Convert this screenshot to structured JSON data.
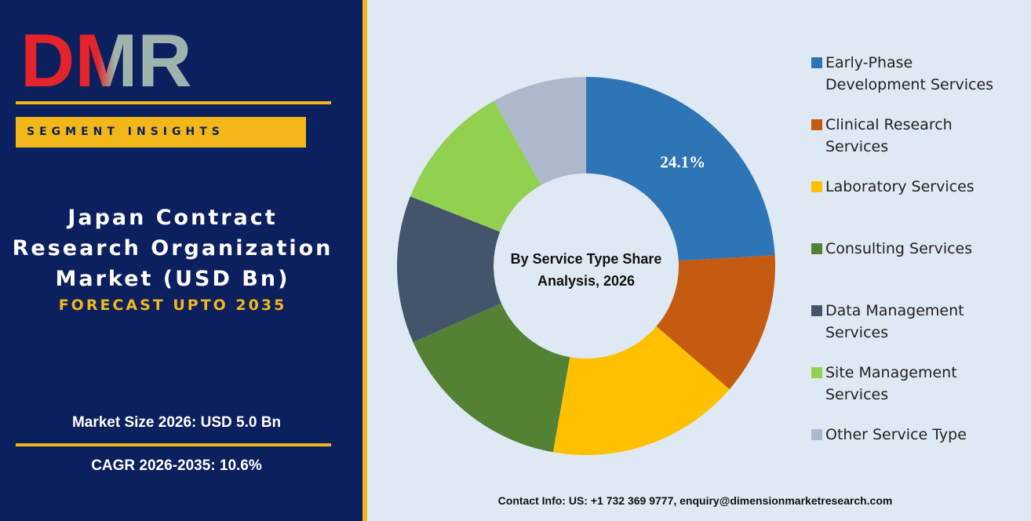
{
  "header": {
    "logo": "DMR",
    "badge": "SEGMENT INSIGHTS",
    "title": "Japan Contract Research Organization Market (USD Bn)",
    "subtitle": "FORECAST UPTO 2035",
    "market_size": "Market Size 2026: USD 5.0 Bn",
    "cagr": "CAGR 2026-2035: 10.6%"
  },
  "chart_data": {
    "type": "donut",
    "title": "By Service Type Share Analysis, 2026",
    "categories": [
      "Early-Phase Development Services",
      "Clinical Research Services",
      "Laboratory Services",
      "Consulting Services",
      "Data Management Services",
      "Site Management Services",
      "Other Service Type"
    ],
    "values": [
      24.1,
      12.2,
      16.5,
      15.6,
      12.6,
      10.9,
      8.1
    ],
    "value_labels": [
      "24.1%",
      null,
      null,
      null,
      null,
      null,
      null
    ],
    "colors": [
      "#2e75b6",
      "#c55a11",
      "#ffc000",
      "#548235",
      "#44546a",
      "#92d050",
      "#adb9ca"
    ],
    "legend": "right"
  },
  "footer": {
    "contact": "Contact Info: US: +1 732 369 9777, enquiry@dimensionmarketresearch.com"
  }
}
